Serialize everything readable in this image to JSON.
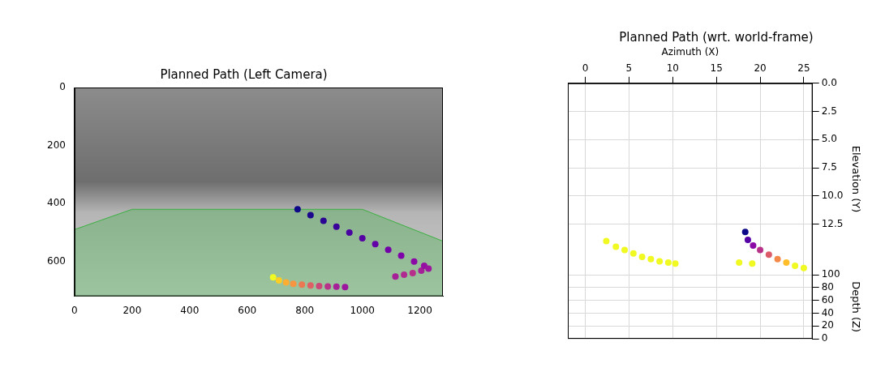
{
  "chart_data": [
    {
      "type": "scatter",
      "title": "Planned Path (Left Camera)",
      "xlim": [
        0,
        1280
      ],
      "xticks": [
        0,
        200,
        400,
        600,
        800,
        1000,
        1200
      ],
      "ylim": [
        720,
        0
      ],
      "yticks": [
        0,
        200,
        400,
        600
      ],
      "grid": false,
      "series": [
        {
          "type": "area",
          "color": "#3cb043",
          "x": [
            0,
            200,
            1000,
            1280,
            1280,
            0,
            0
          ],
          "values": [
            490,
            420,
            420,
            530,
            720,
            720,
            490
          ]
        },
        {
          "type": "scatter",
          "marker": "circle",
          "x": [
            775,
            820,
            865,
            910,
            955,
            1000,
            1045,
            1090,
            1135,
            1180,
            1215,
            1230
          ],
          "values": [
            420,
            440,
            460,
            480,
            500,
            520,
            540,
            560,
            580,
            600,
            615,
            625
          ],
          "colors": [
            "#0d0887",
            "#1b068d",
            "#2a0593",
            "#3a049a",
            "#4903a0",
            "#5601a4",
            "#6300a7",
            "#7201a8",
            "#7e03a8",
            "#8b0aa5",
            "#9511a1",
            "#9c179e"
          ]
        },
        {
          "type": "scatter",
          "marker": "circle",
          "x": [
            1115,
            1145,
            1175,
            1205
          ],
          "values": [
            652,
            646,
            640,
            632
          ],
          "colors": [
            "#a62098",
            "#b02991",
            "#b6308b",
            "#a62098"
          ]
        },
        {
          "type": "scatter",
          "marker": "circle",
          "x": [
            690,
            710,
            735,
            760,
            790,
            820,
            850,
            880,
            910,
            940
          ],
          "values": [
            655,
            665,
            672,
            677,
            680,
            683,
            685,
            686,
            687,
            688
          ],
          "colors": [
            "#f0f921",
            "#fcce25",
            "#fdad32",
            "#f89540",
            "#ec7853",
            "#de5f65",
            "#cc4778",
            "#b83289",
            "#a62098",
            "#9c179e"
          ]
        }
      ]
    },
    {
      "type": "scatter",
      "title": "Planned Path (wrt. world-frame)",
      "xlabel": "Azimuth (X)",
      "ylabel": "Elevation (Y)",
      "zlabel": "Depth (Z)",
      "xlim": [
        -2,
        26
      ],
      "xticks": [
        0,
        5,
        10,
        15,
        20,
        25
      ],
      "ylim": [
        17,
        0
      ],
      "yticks": [
        {
          "value": 0,
          "label": "0.0"
        },
        2.5,
        {
          "value": 5,
          "label": "5.0"
        },
        7.5,
        {
          "value": 10,
          "label": "10.0"
        },
        12.5
      ],
      "zlim": [
        0,
        100
      ],
      "zticks": [
        0,
        20,
        40,
        60,
        80,
        100
      ],
      "grid": true,
      "series": [
        {
          "type": "scatter",
          "marker": "circle",
          "color": "#f0f921",
          "x": [
            2.4,
            3.5,
            4.5,
            5.5,
            6.5,
            7.5,
            8.5,
            9.5,
            10.3
          ],
          "values": [
            14.0,
            14.5,
            14.8,
            15.1,
            15.4,
            15.6,
            15.8,
            15.9,
            16.0
          ]
        },
        {
          "type": "scatter",
          "marker": "circle",
          "color": "#f0f921",
          "x": [
            17.6,
            19.1
          ],
          "values": [
            15.9,
            16.0
          ]
        },
        {
          "type": "scatter",
          "marker": "circle",
          "x": [
            18.3,
            18.6,
            19.2,
            20.0,
            21.0,
            22.0,
            23.0,
            24.0,
            25.0
          ],
          "values": [
            13.2,
            13.9,
            14.4,
            14.8,
            15.2,
            15.6,
            15.9,
            16.2,
            16.4
          ],
          "colors": [
            "#0d0887",
            "#5601a4",
            "#8b0aa5",
            "#b83289",
            "#db5c68",
            "#f48849",
            "#febd2a",
            "#f0f921",
            "#f0f921"
          ]
        }
      ]
    }
  ]
}
